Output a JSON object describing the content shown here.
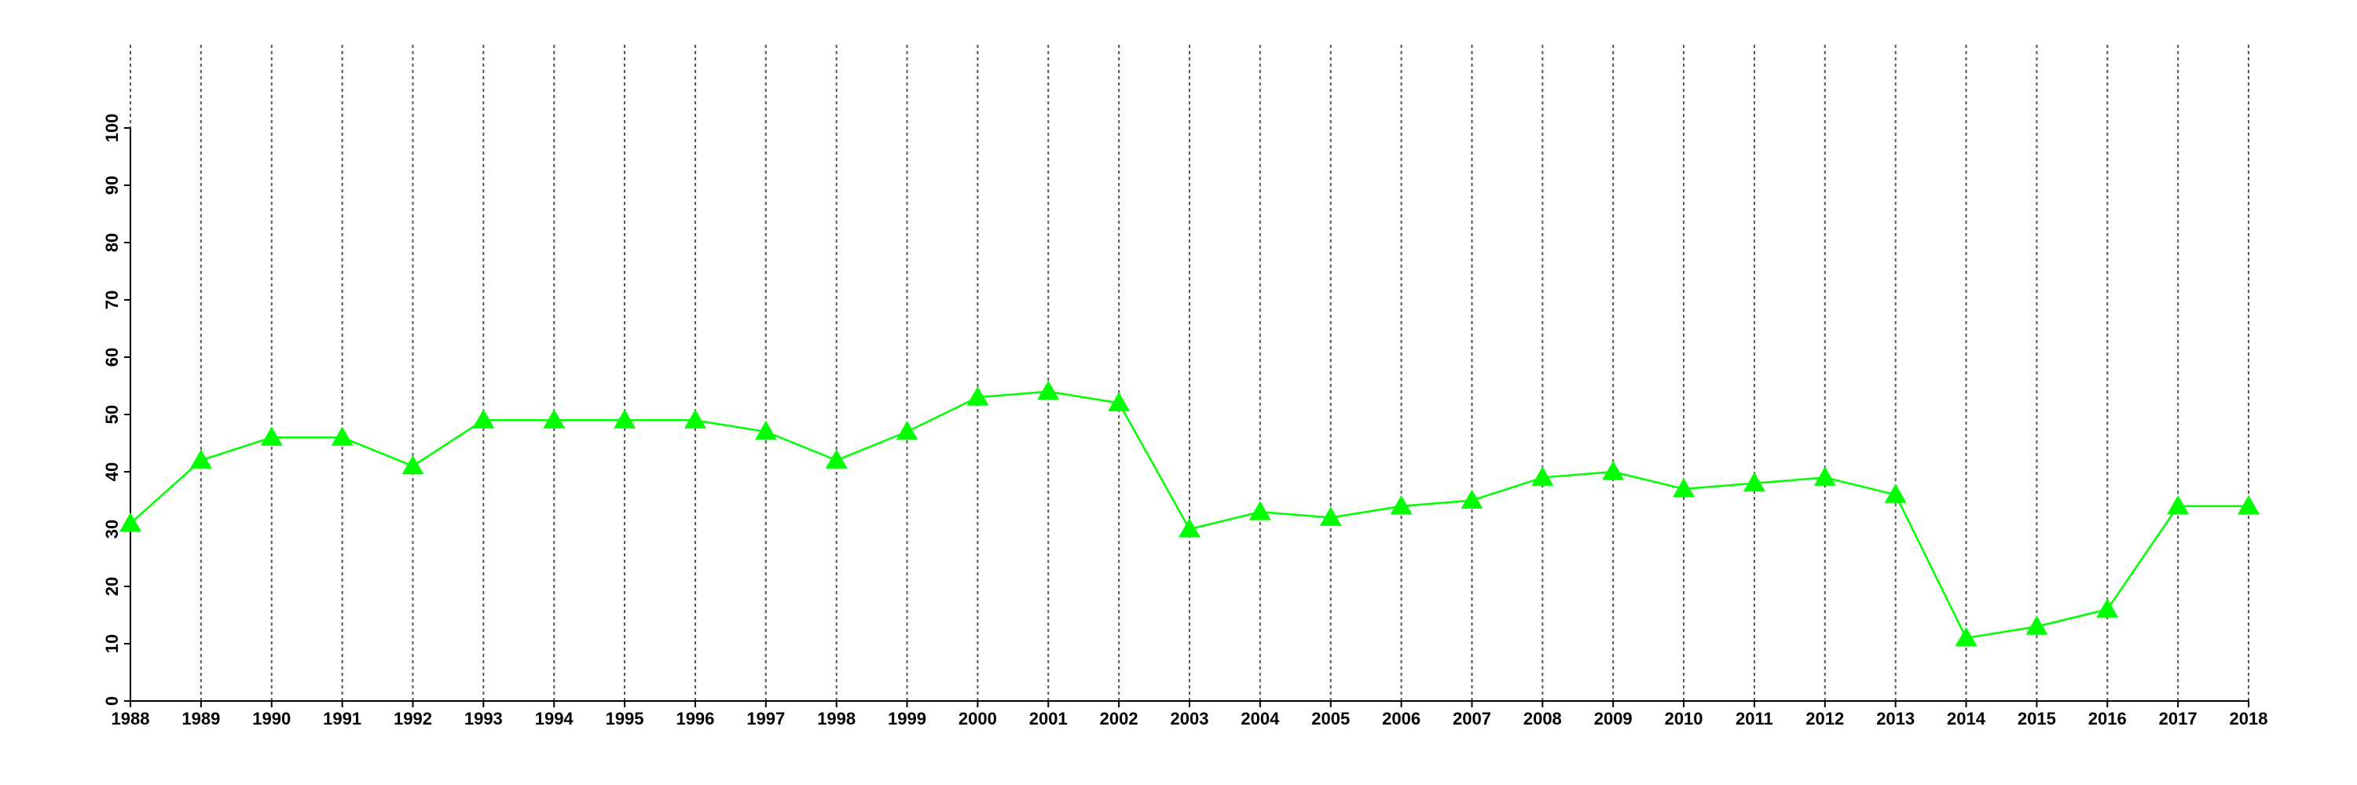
{
  "chart_data": {
    "type": "line",
    "x": [
      1988,
      1989,
      1990,
      1991,
      1992,
      1993,
      1994,
      1995,
      1996,
      1997,
      1998,
      1999,
      2000,
      2001,
      2002,
      2003,
      2004,
      2005,
      2006,
      2007,
      2008,
      2009,
      2010,
      2011,
      2012,
      2013,
      2014,
      2015,
      2016,
      2017,
      2018
    ],
    "series": [
      {
        "color": "#00ff00",
        "marker": "triangle",
        "values": [
          31,
          42,
          46,
          46,
          41,
          49,
          49,
          49,
          49,
          47,
          42,
          47,
          53,
          54,
          52,
          30,
          33,
          32,
          34,
          35,
          39,
          40,
          37,
          38,
          39,
          36,
          11,
          13,
          16,
          34,
          34
        ]
      }
    ],
    "xlim": [
      1988,
      2018
    ],
    "xticks": [
      1988,
      1989,
      1990,
      1991,
      1992,
      1993,
      1994,
      1995,
      1996,
      1997,
      1998,
      1999,
      2000,
      2001,
      2002,
      2003,
      2004,
      2005,
      2006,
      2007,
      2008,
      2009,
      2010,
      2011,
      2012,
      2013,
      2014,
      2015,
      2016,
      2017,
      2018
    ],
    "ylim": [
      0,
      100
    ],
    "yticks": [
      0,
      10,
      20,
      30,
      40,
      50,
      60,
      70,
      80,
      90,
      100
    ],
    "grid": "x"
  }
}
